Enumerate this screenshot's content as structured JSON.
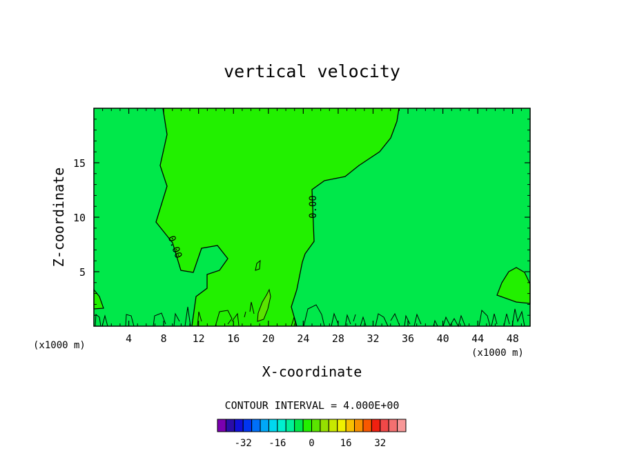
{
  "chart_data": {
    "type": "heatmap",
    "title": "vertical velocity",
    "xlabel": "X-coordinate",
    "ylabel": "Z-coordinate",
    "x_unit_left": "(x1000 m)",
    "x_unit_right": "(x1000 m)",
    "xlim": [
      0,
      50
    ],
    "ylim": [
      0,
      20
    ],
    "x_ticks": [
      4,
      8,
      12,
      16,
      20,
      24,
      28,
      32,
      36,
      40,
      44,
      48
    ],
    "x_ticks_text": [
      "4",
      "8",
      "12",
      "16",
      "20",
      "24",
      "28",
      "32",
      "36",
      "40",
      "44",
      "48"
    ],
    "y_ticks": [
      5,
      10,
      15
    ],
    "y_ticks_text": [
      "5",
      "10",
      "15"
    ],
    "contour_label": "0.00",
    "contour_interval_text": "CONTOUR INTERVAL = 4.000E+00",
    "background_level_color": "#00e84a",
    "positive_region_color": "#22f000",
    "updraft_core_color": "#5ae400",
    "colorbar": {
      "levels": [
        -36,
        -32,
        -28,
        -24,
        -20,
        -16,
        -12,
        -8,
        -4,
        0,
        4,
        8,
        12,
        16,
        20,
        24,
        28,
        32,
        36
      ],
      "colors": [
        "#7a00b0",
        "#2a0da8",
        "#1010d8",
        "#0035f0",
        "#0070f8",
        "#00a8f8",
        "#00d8f0",
        "#00f0d0",
        "#00f09a",
        "#00e84a",
        "#22f000",
        "#5ae400",
        "#96e000",
        "#c8e800",
        "#f0f000",
        "#f8c000",
        "#f89000",
        "#f85800",
        "#f02010",
        "#f04848",
        "#f47070",
        "#f89898"
      ],
      "tick_labels": [
        "-32",
        "-16",
        "0",
        "16",
        "32"
      ]
    }
  }
}
